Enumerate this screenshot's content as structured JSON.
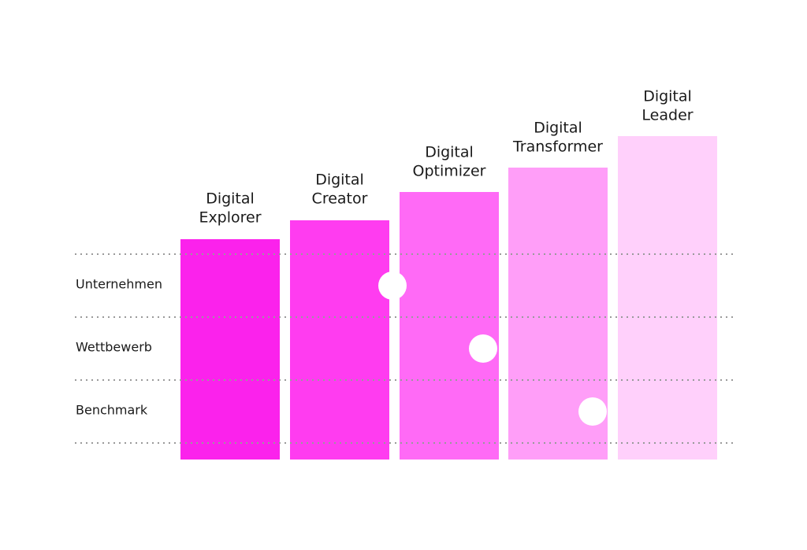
{
  "stages": [
    {
      "line1": "Digital",
      "line2": "Explorer"
    },
    {
      "line1": "Digital",
      "line2": "Creator"
    },
    {
      "line1": "Digital",
      "line2": "Optimizer"
    },
    {
      "line1": "Digital",
      "line2": "Transformer"
    },
    {
      "line1": "Digital",
      "line2": "Leader"
    }
  ],
  "rows": [
    "Unternehmen",
    "Wettbewerb",
    "Benchmark"
  ]
}
